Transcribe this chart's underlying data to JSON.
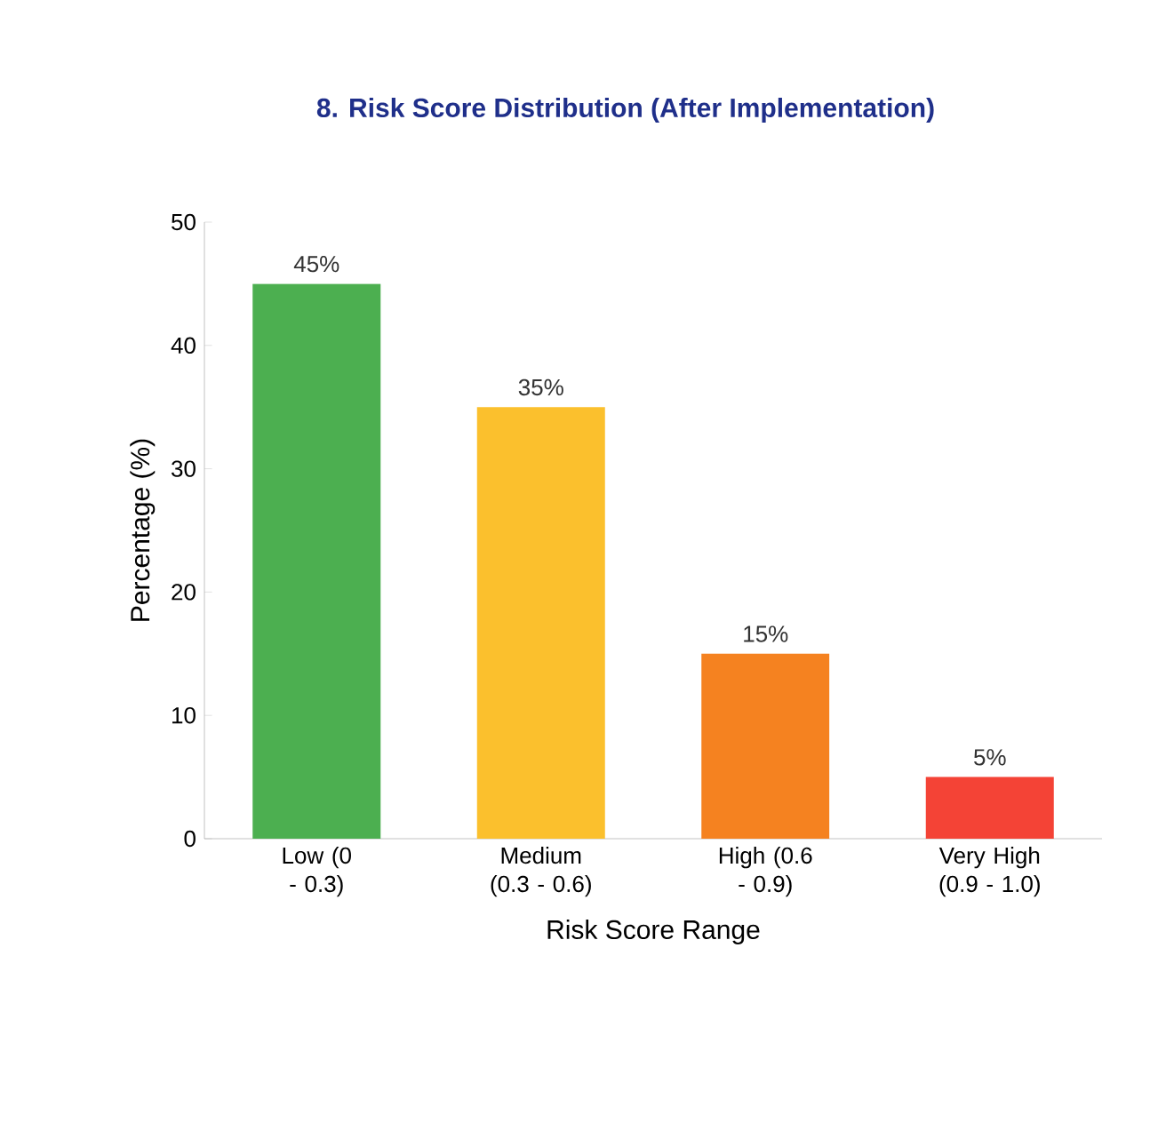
{
  "chart_data": {
    "type": "bar",
    "title": "8. Risk Score Distribution (After Implementation)",
    "xlabel": "Risk Score Range",
    "ylabel": "Percentage (%)",
    "categories": [
      "Low (0 - 0.3)",
      "Medium (0.3 - 0.6)",
      "High (0.6 - 0.9)",
      "Very High (0.9 - 1.0)"
    ],
    "values": [
      45,
      35,
      15,
      5
    ],
    "value_labels": [
      "45%",
      "35%",
      "15%",
      "5%"
    ],
    "colors": [
      "#4caf50",
      "#fbc02d",
      "#f58220",
      "#f44336"
    ],
    "ylim": [
      0,
      50
    ],
    "yticks": [
      0,
      10,
      20,
      30,
      40,
      50
    ],
    "grid": false
  }
}
